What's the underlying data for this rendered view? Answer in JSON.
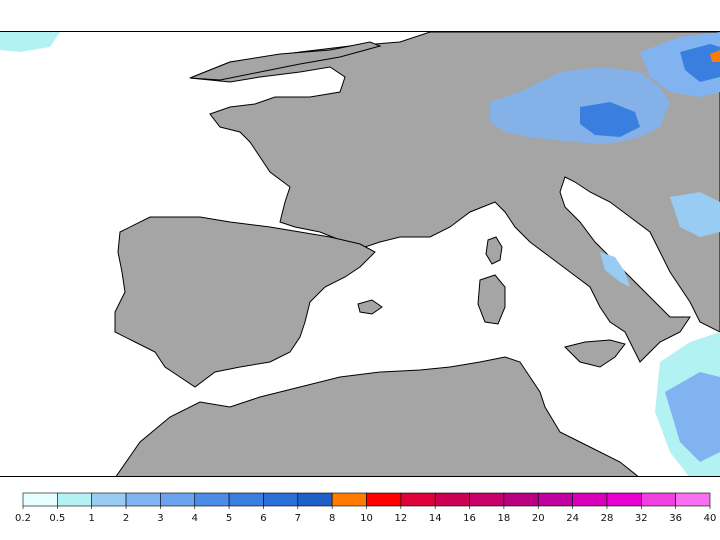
{
  "legend": {
    "bins": [
      {
        "color": "#e6ffff"
      },
      {
        "color": "#b3f2f2"
      },
      {
        "color": "#99ccf2"
      },
      {
        "color": "#80b3f0"
      },
      {
        "color": "#6aa4ee"
      },
      {
        "color": "#4d8ce6"
      },
      {
        "color": "#3a7fe0"
      },
      {
        "color": "#2a6fd8"
      },
      {
        "color": "#1f5fc8"
      },
      {
        "color": "#ff7a00"
      },
      {
        "color": "#ff0000"
      },
      {
        "color": "#e0003a"
      },
      {
        "color": "#cc0052"
      },
      {
        "color": "#c8006a"
      },
      {
        "color": "#b80080"
      },
      {
        "color": "#c000a0"
      },
      {
        "color": "#d800b8"
      },
      {
        "color": "#e800d0"
      },
      {
        "color": "#f040e0"
      },
      {
        "color": "#f870f0"
      }
    ],
    "ticks": [
      "0.2",
      "0.5",
      "1",
      "2",
      "3",
      "4",
      "5",
      "6",
      "7",
      "8",
      "10",
      "12",
      "14",
      "16",
      "18",
      "20",
      "24",
      "28",
      "32",
      "36",
      "40"
    ]
  },
  "colors": {
    "land": "#a5a5a5",
    "sea": "#ffffff",
    "coast": "#000000"
  }
}
